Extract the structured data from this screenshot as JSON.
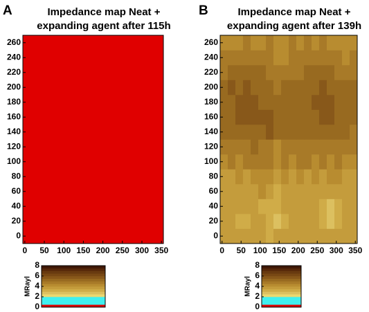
{
  "chart_data": [
    {
      "type": "heatmap",
      "panel": "A",
      "title": [
        "Impedance map Neat +",
        "expanding agent after 115h"
      ],
      "x_edges": [
        -5,
        355
      ],
      "y_edges": [
        -10,
        270
      ],
      "values": [
        [
          0.3
        ]
      ],
      "xlim": [
        -5,
        355
      ],
      "ylim": [
        -10,
        270
      ],
      "xticks": [
        0,
        50,
        100,
        150,
        200,
        250,
        300,
        350
      ],
      "yticks": [
        0,
        20,
        40,
        60,
        80,
        100,
        120,
        140,
        160,
        180,
        200,
        220,
        240,
        260
      ],
      "colormap": {
        "bounds": [
          0,
          0.5,
          2,
          2.5,
          3,
          3.5,
          4,
          4.5,
          5,
          5.5,
          6,
          6.5,
          7,
          7.5,
          8
        ],
        "colors": [
          "#e00000",
          "#40f0f0",
          "#ecd870",
          "#dcc060",
          "#d0ac48",
          "#c49c3c",
          "#b88c30",
          "#a87a28",
          "#986a20",
          "#88581a",
          "#784814",
          "#683a10",
          "#56280a",
          "#401806"
        ]
      },
      "colorbar_label": "MRayl",
      "colorbar_lim": [
        0,
        8
      ],
      "colorbar_ticks": [
        0,
        2,
        4,
        6,
        8
      ]
    },
    {
      "type": "heatmap",
      "panel": "B",
      "title": [
        "Impedance map Neat +",
        "expanding agent after 139h"
      ],
      "x_edges": [
        -5,
        15,
        35,
        55,
        75,
        95,
        115,
        135,
        155,
        175,
        195,
        215,
        235,
        255,
        275,
        295,
        315,
        335,
        355
      ],
      "y_edges": [
        -10,
        10,
        30,
        50,
        70,
        90,
        110,
        130,
        150,
        170,
        190,
        210,
        230,
        250,
        270
      ],
      "values": [
        [
          3.5,
          3.5,
          3.5,
          3.5,
          3.5,
          3.5,
          3,
          3.5,
          3.5,
          3.5,
          3.5,
          3.5,
          3.5,
          3.5,
          3.5,
          3.5,
          3.5,
          3.5
        ],
        [
          3.5,
          3.5,
          3,
          3,
          3.5,
          3.5,
          3,
          2.5,
          3,
          3.5,
          3.5,
          3.5,
          3.5,
          3,
          2.5,
          3,
          3.5,
          3.5
        ],
        [
          3.5,
          3.5,
          3.5,
          3.5,
          3.5,
          3,
          3,
          3,
          3.5,
          3.5,
          3.5,
          3.5,
          3.5,
          3,
          2.5,
          3,
          3.5,
          3.5
        ],
        [
          3.5,
          3.5,
          3.5,
          3.5,
          3.5,
          4,
          3.5,
          3,
          3.5,
          3.5,
          3.5,
          3.5,
          3.5,
          3.5,
          3.5,
          3.5,
          3.5,
          3.5
        ],
        [
          3.5,
          3.5,
          4,
          3.5,
          4,
          4,
          4,
          3.5,
          4,
          3.5,
          4,
          3.5,
          4,
          3.5,
          4,
          4,
          3.5,
          3.5
        ],
        [
          4,
          4.5,
          4,
          4.5,
          4.5,
          4.5,
          4.5,
          4,
          4.5,
          4,
          4.5,
          4.5,
          4,
          4.5,
          4,
          4.5,
          4,
          4
        ],
        [
          4.5,
          4.5,
          4.5,
          4.5,
          5,
          4.5,
          4.5,
          4,
          4.5,
          4.5,
          4.5,
          4.5,
          4.5,
          4.5,
          4.5,
          4.5,
          4.5,
          4.5
        ],
        [
          5,
          5,
          5,
          5,
          5,
          5,
          5.5,
          5,
          5,
          5,
          5,
          5,
          5,
          5,
          5,
          5,
          5,
          4.5
        ],
        [
          5,
          5,
          5.5,
          5.5,
          5.5,
          5.5,
          5.5,
          5,
          5,
          5,
          5,
          5,
          5,
          5.5,
          5.5,
          5,
          5,
          5
        ],
        [
          5,
          5,
          5.5,
          5.5,
          5.5,
          5,
          5,
          5,
          5,
          5,
          5,
          5,
          5.5,
          5.5,
          5.5,
          5,
          5,
          5
        ],
        [
          5,
          5.5,
          5,
          5.5,
          5,
          5,
          5,
          4.5,
          5,
          5,
          5,
          5,
          5,
          5.5,
          5,
          5,
          5,
          5
        ],
        [
          4.5,
          5,
          5,
          5,
          5,
          5,
          4.5,
          4.5,
          4.5,
          4.5,
          4.5,
          5,
          5,
          5,
          5,
          4.5,
          4.5,
          4.5
        ],
        [
          4.5,
          4.5,
          4.5,
          4.5,
          4.5,
          4.5,
          4.5,
          4,
          4,
          4.5,
          4.5,
          4.5,
          4.5,
          4.5,
          4.5,
          4.5,
          4,
          4.5
        ],
        [
          4,
          4,
          4,
          4.5,
          4,
          4,
          4.5,
          4,
          4,
          4.5,
          4,
          4.5,
          4,
          4.5,
          4,
          4,
          4,
          4
        ]
      ],
      "xlim": [
        -5,
        355
      ],
      "ylim": [
        -10,
        270
      ],
      "xticks": [
        0,
        50,
        100,
        150,
        200,
        250,
        300,
        350
      ],
      "yticks": [
        0,
        20,
        40,
        60,
        80,
        100,
        120,
        140,
        160,
        180,
        200,
        220,
        240,
        260
      ],
      "colormap": {
        "bounds": [
          0,
          0.5,
          2,
          2.5,
          3,
          3.5,
          4,
          4.5,
          5,
          5.5,
          6,
          6.5,
          7,
          7.5,
          8
        ],
        "colors": [
          "#e00000",
          "#40f0f0",
          "#ecd870",
          "#dcc060",
          "#d0ac48",
          "#c49c3c",
          "#b88c30",
          "#a87a28",
          "#986a20",
          "#88581a",
          "#784814",
          "#683a10",
          "#56280a",
          "#401806"
        ]
      },
      "colorbar_label": "MRayl",
      "colorbar_lim": [
        0,
        8
      ],
      "colorbar_ticks": [
        0,
        2,
        4,
        6,
        8
      ]
    }
  ]
}
